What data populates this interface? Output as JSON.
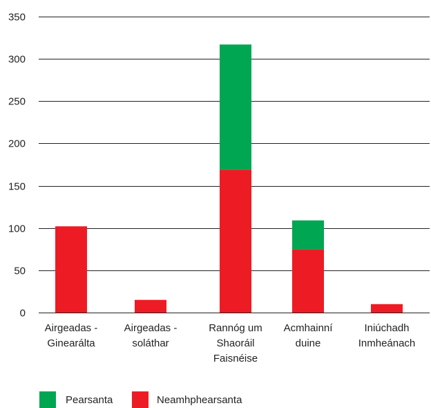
{
  "chart_data": {
    "type": "bar",
    "stacked": true,
    "categories": [
      [
        "Airgeadas -",
        "Ginearálta"
      ],
      [
        "Airgeadas -",
        "soláthar"
      ],
      [
        "Rannóg um",
        "Shaoráil",
        "Faisnéise"
      ],
      [
        "Acmhainní",
        "duine"
      ],
      [
        "Iniúchadh",
        "Inmheánach"
      ]
    ],
    "series": [
      {
        "name": "Neamhphearsanta",
        "color": "#ed1c24",
        "values": [
          102,
          15,
          169,
          75,
          10
        ]
      },
      {
        "name": "Pearsanta",
        "color": "#00a651",
        "values": [
          0,
          0,
          148,
          34,
          0
        ]
      }
    ],
    "ylim": [
      0,
      350
    ],
    "yticks": [
      0,
      50,
      100,
      150,
      200,
      250,
      300,
      350
    ],
    "grid": true,
    "legend_position": "bottom-left",
    "legend": [
      {
        "label": "Pearsanta",
        "color": "#00a651"
      },
      {
        "label": "Neamhphearsanta",
        "color": "#ed1c24"
      }
    ]
  }
}
